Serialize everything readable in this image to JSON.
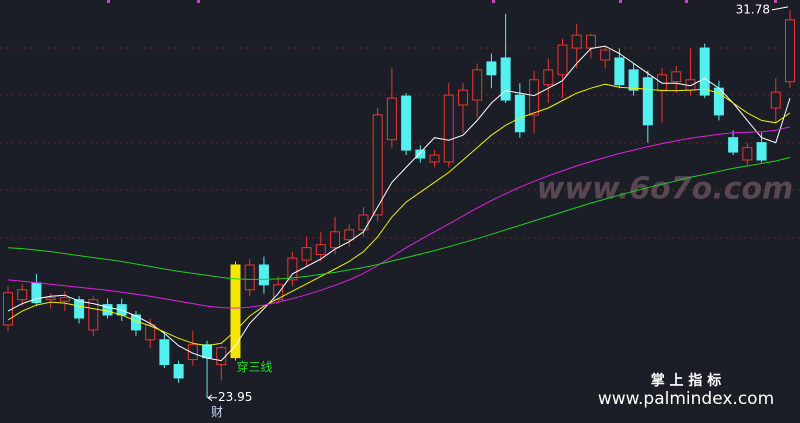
{
  "chart_data": {
    "type": "candlestick",
    "background": "#1b1e26",
    "up_color": "#e8372f",
    "down_color": "#54f0f0",
    "highlight": {
      "index": 16,
      "color": "#f5e600"
    },
    "categories": [
      null,
      null,
      null,
      null,
      null,
      null,
      null,
      null,
      null,
      null,
      null,
      null,
      null,
      null,
      null,
      null,
      null,
      null,
      null,
      null,
      null,
      null,
      null,
      null,
      null,
      null,
      null,
      null,
      null,
      null,
      null,
      null,
      null,
      null,
      null,
      null,
      null,
      null,
      null,
      null,
      null,
      null,
      null,
      null,
      null,
      null,
      null,
      null,
      null,
      null,
      null,
      null,
      null,
      null,
      null,
      null
    ],
    "open": [
      25.42,
      25.93,
      26.27,
      25.93,
      25.9,
      25.93,
      25.32,
      25.83,
      25.83,
      25.62,
      25.12,
      25.12,
      24.62,
      24.72,
      25.02,
      24.62,
      24.76,
      26.13,
      26.63,
      25.93,
      26.33,
      26.73,
      26.84,
      26.98,
      27.14,
      27.34,
      27.64,
      29.16,
      30.04,
      28.95,
      28.71,
      28.71,
      29.86,
      29.96,
      30.73,
      30.81,
      30.06,
      29.66,
      30.27,
      30.47,
      31.01,
      31.01,
      30.77,
      30.81,
      30.57,
      30.41,
      30.16,
      30.33,
      30.16,
      31.01,
      30.2,
      29.2,
      28.75,
      29.1,
      29.8,
      30.33
    ],
    "high": [
      26.2,
      26.25,
      26.45,
      26.05,
      26.1,
      26.0,
      26.0,
      25.95,
      25.95,
      25.7,
      25.55,
      25.25,
      24.7,
      25.3,
      25.1,
      25.0,
      26.7,
      26.75,
      26.8,
      26.4,
      26.9,
      27.2,
      27.3,
      27.6,
      27.45,
      27.8,
      29.8,
      30.6,
      30.1,
      29.05,
      28.95,
      30.3,
      30.3,
      30.7,
      30.9,
      31.7,
      30.3,
      30.55,
      30.8,
      31.2,
      31.5,
      31.3,
      31.05,
      31.0,
      30.7,
      30.55,
      30.6,
      30.65,
      31.0,
      31.1,
      30.35,
      29.35,
      29.1,
      29.3,
      30.4,
      31.78
    ],
    "low": [
      25.3,
      25.8,
      25.8,
      25.75,
      25.7,
      25.45,
      25.2,
      25.55,
      25.5,
      25.2,
      24.95,
      24.55,
      24.25,
      24.6,
      23.95,
      24.3,
      24.7,
      26.0,
      26.05,
      25.85,
      26.2,
      26.6,
      26.7,
      26.85,
      27.0,
      27.2,
      27.5,
      29.0,
      28.85,
      28.7,
      28.6,
      28.6,
      29.3,
      29.6,
      30.2,
      29.9,
      29.2,
      29.3,
      29.9,
      30.0,
      30.6,
      30.8,
      30.6,
      30.2,
      30.05,
      29.1,
      29.5,
      30.1,
      30.05,
      30.0,
      29.55,
      28.85,
      28.65,
      28.7,
      29.5,
      30.2
    ],
    "close": [
      26.07,
      26.13,
      25.87,
      25.97,
      25.97,
      25.56,
      25.93,
      25.62,
      25.62,
      25.32,
      25.42,
      24.62,
      24.35,
      25.02,
      24.76,
      24.96,
      26.63,
      26.63,
      26.23,
      26.23,
      26.77,
      26.98,
      27.04,
      27.3,
      27.34,
      27.64,
      29.66,
      30.0,
      28.95,
      28.79,
      28.85,
      30.06,
      30.16,
      30.57,
      30.47,
      29.96,
      29.32,
      30.37,
      30.57,
      31.07,
      31.27,
      31.27,
      30.97,
      30.27,
      30.16,
      29.46,
      30.47,
      30.53,
      30.37,
      30.06,
      29.66,
      28.91,
      29.0,
      28.75,
      30.12,
      31.58
    ],
    "lines": [
      {
        "color": "#ffffff",
        "values": [
          25.7,
          25.85,
          25.95,
          26.0,
          26.02,
          25.9,
          25.85,
          25.78,
          25.72,
          25.6,
          25.45,
          25.25,
          25.0,
          24.85,
          24.75,
          24.7,
          25.0,
          25.45,
          25.75,
          26.05,
          26.45,
          26.6,
          26.75,
          26.95,
          27.1,
          27.3,
          27.8,
          28.3,
          28.6,
          28.9,
          29.2,
          29.15,
          29.25,
          29.55,
          29.9,
          30.15,
          30.1,
          30.05,
          30.2,
          30.35,
          30.7,
          31.0,
          31.05,
          30.9,
          30.7,
          30.5,
          30.3,
          30.3,
          30.25,
          30.4,
          30.2,
          29.9,
          29.55,
          29.2,
          29.1,
          30.0
        ]
      },
      {
        "color": "#f0f000",
        "values": [
          25.52,
          25.7,
          25.82,
          25.88,
          25.86,
          25.8,
          25.75,
          25.7,
          25.62,
          25.5,
          25.4,
          25.28,
          25.15,
          25.05,
          25.0,
          25.05,
          25.3,
          25.6,
          25.8,
          25.95,
          26.1,
          26.25,
          26.4,
          26.55,
          26.7,
          26.9,
          27.2,
          27.6,
          27.9,
          28.1,
          28.3,
          28.5,
          28.75,
          29.0,
          29.25,
          29.45,
          29.6,
          29.7,
          29.8,
          29.95,
          30.1,
          30.2,
          30.28,
          30.22,
          30.2,
          30.18,
          30.15,
          30.15,
          30.16,
          30.18,
          30.1,
          29.9,
          29.7,
          29.55,
          29.5,
          29.7
        ]
      },
      {
        "color": "#e020e0",
        "values": [
          26.33,
          26.3,
          26.27,
          26.24,
          26.21,
          26.18,
          26.15,
          26.12,
          26.08,
          26.04,
          26.0,
          25.95,
          25.9,
          25.85,
          25.8,
          25.77,
          25.76,
          25.78,
          25.82,
          25.88,
          25.95,
          26.03,
          26.12,
          26.22,
          26.33,
          26.46,
          26.62,
          26.8,
          26.98,
          27.14,
          27.3,
          27.46,
          27.62,
          27.78,
          27.93,
          28.07,
          28.2,
          28.32,
          28.43,
          28.53,
          28.63,
          28.72,
          28.8,
          28.88,
          28.95,
          29.02,
          29.08,
          29.14,
          29.19,
          29.23,
          29.27,
          29.3,
          29.31,
          29.32,
          29.35,
          29.42
        ]
      },
      {
        "color": "#20d020",
        "values": [
          26.98,
          26.96,
          26.93,
          26.9,
          26.86,
          26.82,
          26.78,
          26.74,
          26.7,
          26.65,
          26.6,
          26.55,
          26.5,
          26.46,
          26.42,
          26.38,
          26.35,
          26.34,
          26.34,
          26.35,
          26.37,
          26.4,
          26.44,
          26.48,
          26.53,
          26.58,
          26.64,
          26.71,
          26.78,
          26.85,
          26.92,
          27.0,
          27.08,
          27.16,
          27.25,
          27.34,
          27.43,
          27.52,
          27.61,
          27.7,
          27.79,
          27.88,
          27.96,
          28.04,
          28.12,
          28.19,
          28.26,
          28.33,
          28.4,
          28.46,
          28.52,
          28.58,
          28.63,
          28.68,
          28.73,
          28.8
        ]
      }
    ],
    "ylim": [
      23.44,
      31.98
    ],
    "high_label": "31.78",
    "low_label": "23.95",
    "low_note": "财",
    "signal_label": "穿三线",
    "watermark": "www.6o7o.com",
    "brand": "掌 上 指 标",
    "brand_url": "www.palmindex.com"
  }
}
